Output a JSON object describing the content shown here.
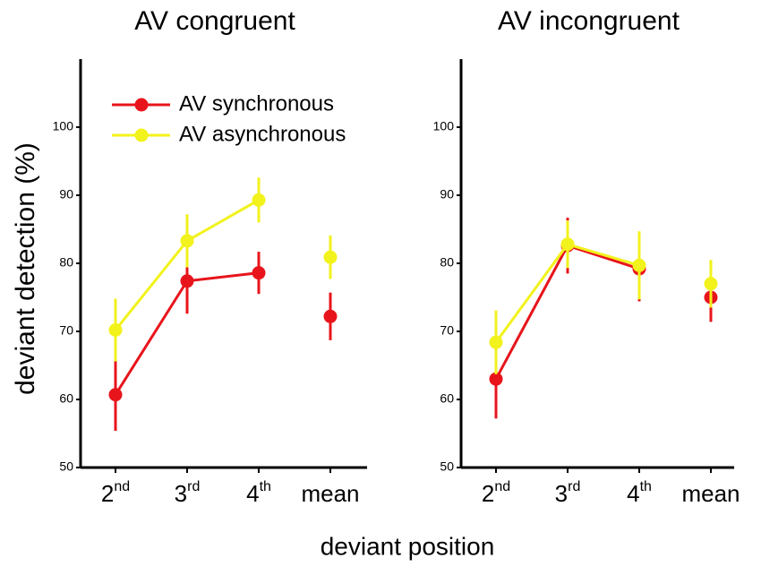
{
  "xlabel": "deviant position",
  "chart_data": [
    {
      "type": "line",
      "title": "AV congruent",
      "ylabel": "deviant detection (%)",
      "categories": [
        "2nd",
        "3rd",
        "4th",
        "mean"
      ],
      "ylim": [
        50,
        110
      ],
      "yticks": [
        50,
        60,
        70,
        80,
        90,
        100
      ],
      "legend": "upper left",
      "series": [
        {
          "name": "AV synchronous",
          "color": "#e8141b",
          "values": [
            60.7,
            77.4,
            78.6,
            72.2
          ],
          "errors": [
            5.3,
            4.8,
            3.1,
            3.5
          ]
        },
        {
          "name": "AV asynchronous",
          "color": "#f2f21c",
          "values": [
            70.2,
            83.3,
            89.3,
            80.9
          ],
          "errors": [
            4.6,
            3.9,
            3.3,
            3.2
          ]
        }
      ]
    },
    {
      "type": "line",
      "title": "AV incongruent",
      "categories": [
        "2nd",
        "3rd",
        "4th",
        "mean"
      ],
      "ylim": [
        50,
        110
      ],
      "yticks": [
        50,
        60,
        70,
        80,
        90,
        100
      ],
      "series": [
        {
          "color": "#e8141b",
          "values": [
            63.0,
            82.6,
            79.2,
            75.0
          ],
          "errors": [
            5.8,
            4.1,
            4.8,
            3.6
          ]
        },
        {
          "color": "#f2f21c",
          "values": [
            68.4,
            82.8,
            79.7,
            77.0
          ],
          "errors": [
            4.7,
            3.5,
            5.0,
            3.5
          ]
        }
      ]
    }
  ]
}
